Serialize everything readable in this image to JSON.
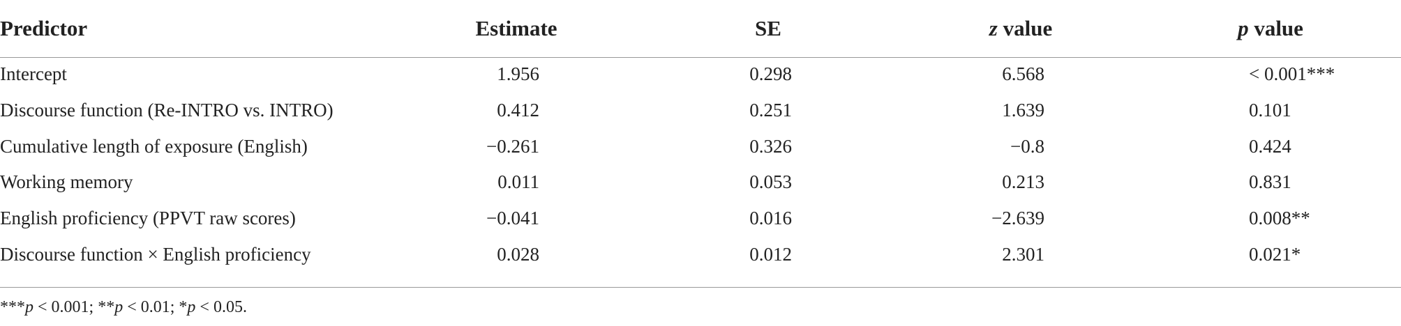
{
  "table": {
    "headers": [
      "Predictor",
      "Estimate",
      "SE",
      [
        "z",
        " value"
      ],
      [
        "p",
        " value"
      ]
    ],
    "rows": [
      [
        "Intercept",
        "1.956",
        "0.298",
        "6.568",
        "< 0.001***"
      ],
      [
        "Discourse function (Re-INTRO vs. INTRO)",
        "0.412",
        "0.251",
        "1.639",
        "0.101"
      ],
      [
        "Cumulative length of exposure (English)",
        "−0.261",
        "0.326",
        "−0.8",
        "0.424"
      ],
      [
        "Working memory",
        "0.011",
        "0.053",
        "0.213",
        "0.831"
      ],
      [
        "English proficiency (PPVT raw scores)",
        "−0.041",
        "0.016",
        "−2.639",
        "0.008**"
      ],
      [
        "Discourse function × English proficiency",
        "0.028",
        "0.012",
        "2.301",
        "0.021*"
      ]
    ],
    "footnote": [
      "***",
      "p",
      " < 0.001; **",
      "p",
      " < 0.01; *",
      "p",
      " < 0.05."
    ]
  }
}
